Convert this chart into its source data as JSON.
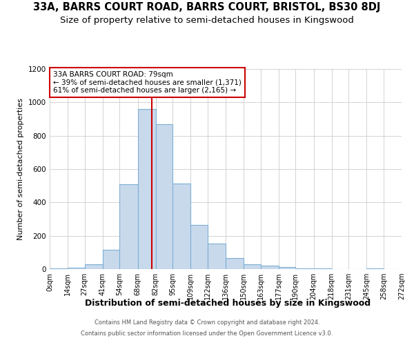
{
  "title": "33A, BARRS COURT ROAD, BARRS COURT, BRISTOL, BS30 8DJ",
  "subtitle": "Size of property relative to semi-detached houses in Kingswood",
  "xlabel": "Distribution of semi-detached houses by size in Kingswood",
  "ylabel": "Number of semi-detached properties",
  "footnote1": "Contains HM Land Registry data © Crown copyright and database right 2024.",
  "footnote2": "Contains public sector information licensed under the Open Government Licence v3.0.",
  "bin_edges": [
    0,
    14,
    27,
    41,
    54,
    68,
    82,
    95,
    109,
    122,
    136,
    150,
    163,
    177,
    190,
    204,
    218,
    231,
    245,
    258,
    272
  ],
  "bar_heights": [
    5,
    10,
    27,
    115,
    510,
    960,
    870,
    515,
    265,
    155,
    65,
    28,
    22,
    12,
    5,
    3,
    2,
    0,
    5,
    0
  ],
  "tick_labels": [
    "0sqm",
    "14sqm",
    "27sqm",
    "41sqm",
    "54sqm",
    "68sqm",
    "82sqm",
    "95sqm",
    "109sqm",
    "122sqm",
    "136sqm",
    "150sqm",
    "163sqm",
    "177sqm",
    "190sqm",
    "204sqm",
    "218sqm",
    "231sqm",
    "245sqm",
    "258sqm",
    "272sqm"
  ],
  "bar_color": "#c9d9ec",
  "bar_edge_color": "#7bafd4",
  "property_line_x": 79,
  "property_line_color": "#cc0000",
  "annotation_line1": "33A BARRS COURT ROAD: 79sqm",
  "annotation_line2": "← 39% of semi-detached houses are smaller (1,371)",
  "annotation_line3": "61% of semi-detached houses are larger (2,165) →",
  "annotation_box_color": "#ffffff",
  "annotation_box_edge": "#cc0000",
  "ylim": [
    0,
    1200
  ],
  "yticks": [
    0,
    200,
    400,
    600,
    800,
    1000,
    1200
  ],
  "background_color": "#ffffff",
  "grid_color": "#cccccc",
  "title_fontsize": 10.5,
  "subtitle_fontsize": 9.5,
  "xlabel_fontsize": 9,
  "ylabel_fontsize": 8,
  "tick_fontsize": 7,
  "annot_fontsize": 7.5
}
